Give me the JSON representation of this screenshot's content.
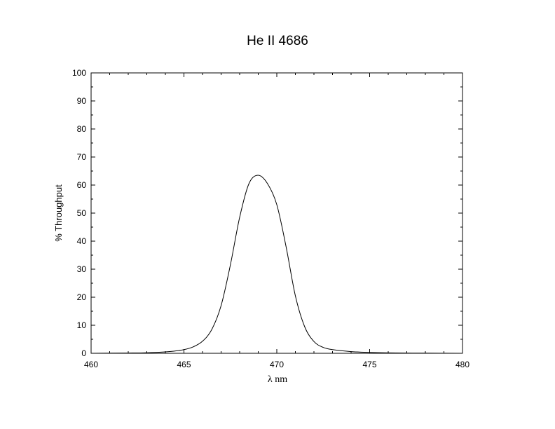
{
  "chart_data": {
    "type": "line",
    "title": "He II 4686",
    "xlabel": "λ nm",
    "ylabel": "% Throughput",
    "xlim": [
      460,
      480
    ],
    "ylim": [
      0,
      100
    ],
    "xticks": [
      460,
      465,
      470,
      475,
      480
    ],
    "yticks": [
      0,
      10,
      20,
      30,
      40,
      50,
      60,
      70,
      80,
      90,
      100
    ],
    "grid": false,
    "series": [
      {
        "x": [
          460,
          462,
          463,
          464,
          464.5,
          465,
          465.5,
          466,
          466.5,
          467,
          467.5,
          468,
          468.5,
          469,
          469.5,
          470,
          470.5,
          471,
          471.5,
          472,
          472.5,
          473,
          474,
          475,
          476,
          478,
          480
        ],
        "y": [
          0.0,
          0.1,
          0.2,
          0.5,
          0.8,
          1.3,
          2.3,
          4.3,
          8.5,
          17.0,
          31.5,
          48.5,
          60.5,
          63.5,
          60.5,
          53.0,
          38.0,
          20.5,
          9.5,
          4.2,
          2.1,
          1.3,
          0.6,
          0.3,
          0.15,
          0.05,
          0.0
        ],
        "color": "#000000"
      }
    ]
  }
}
